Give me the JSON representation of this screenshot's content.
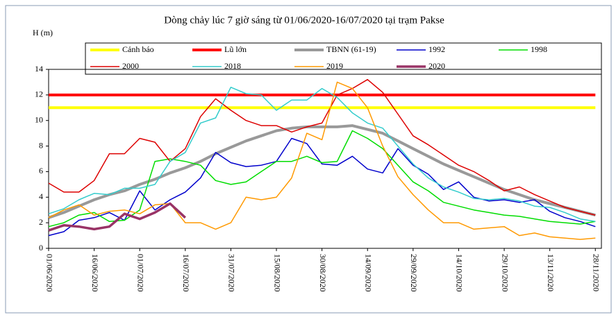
{
  "chart_data": {
    "type": "line",
    "title": "Dòng chảy lúc 7 giờ sáng từ 01/06/2020-16/07/2020 tại trạm Pakse",
    "y_label": "H (m)",
    "x": [
      "01/06/2020",
      "06/06/2020",
      "11/06/2020",
      "16/06/2020",
      "21/06/2020",
      "26/06/2020",
      "01/07/2020",
      "06/07/2020",
      "11/07/2020",
      "16/07/2020",
      "21/07/2020",
      "26/07/2020",
      "31/07/2020",
      "05/08/2020",
      "10/08/2020",
      "15/08/2020",
      "20/08/2020",
      "25/08/2020",
      "30/08/2020",
      "04/09/2020",
      "09/09/2020",
      "14/09/2020",
      "19/09/2020",
      "24/09/2020",
      "29/09/2020",
      "04/10/2020",
      "09/10/2020",
      "14/10/2020",
      "19/10/2020",
      "24/10/2020",
      "29/10/2020",
      "03/11/2020",
      "08/11/2020",
      "13/11/2020",
      "18/11/2020",
      "23/11/2020",
      "28/11/2020"
    ],
    "xlim": [
      "01/06/2020",
      "30/11/2020"
    ],
    "xticks": [
      "01/06/2020",
      "16/06/2020",
      "01/07/2020",
      "16/07/2020",
      "31/07/2020",
      "15/08/2020",
      "30/08/2020",
      "14/09/2020",
      "29/09/2020",
      "14/10/2020",
      "29/10/2020",
      "13/11/2020",
      "28/11/2020"
    ],
    "ylim": [
      0,
      14
    ],
    "yticks": [
      0,
      2,
      4,
      6,
      8,
      10,
      12,
      14
    ],
    "series": [
      {
        "name": "Cảnh báo",
        "color": "#ffff00",
        "line_width": 4,
        "values": [
          11,
          11,
          11,
          11,
          11,
          11,
          11,
          11,
          11,
          11,
          11,
          11,
          11,
          11,
          11,
          11,
          11,
          11,
          11,
          11,
          11,
          11,
          11,
          11,
          11,
          11,
          11,
          11,
          11,
          11,
          11,
          11,
          11,
          11,
          11,
          11,
          11
        ]
      },
      {
        "name": "Lũ lớn",
        "color": "#ff0000",
        "line_width": 4,
        "values": [
          12,
          12,
          12,
          12,
          12,
          12,
          12,
          12,
          12,
          12,
          12,
          12,
          12,
          12,
          12,
          12,
          12,
          12,
          12,
          12,
          12,
          12,
          12,
          12,
          12,
          12,
          12,
          12,
          12,
          12,
          12,
          12,
          12,
          12,
          12,
          12,
          12
        ]
      },
      {
        "name": "TBNN (61-19)",
        "color": "#999999",
        "line_width": 4,
        "values": [
          2.4,
          2.8,
          3.3,
          3.8,
          4.2,
          4.5,
          5.0,
          5.4,
          5.9,
          6.3,
          6.8,
          7.4,
          7.9,
          8.4,
          8.8,
          9.2,
          9.4,
          9.5,
          9.5,
          9.5,
          9.6,
          9.3,
          9.0,
          8.4,
          7.8,
          7.2,
          6.6,
          6.1,
          5.6,
          5.1,
          4.6,
          4.2,
          3.8,
          3.5,
          3.2,
          2.9,
          2.6
        ]
      },
      {
        "name": "1992",
        "color": "#0000cc",
        "line_width": 1.5,
        "values": [
          1.0,
          1.3,
          2.2,
          2.4,
          2.8,
          2.2,
          4.5,
          3.0,
          3.8,
          4.4,
          5.5,
          7.5,
          6.7,
          6.4,
          6.5,
          6.8,
          8.6,
          8.2,
          6.6,
          6.5,
          7.2,
          6.2,
          5.9,
          7.8,
          6.5,
          5.8,
          4.6,
          5.2,
          4.0,
          3.7,
          3.8,
          3.6,
          3.8,
          2.9,
          2.4,
          2.1,
          1.7
        ]
      },
      {
        "name": "1998",
        "color": "#00dd00",
        "line_width": 1.5,
        "values": [
          1.7,
          2.0,
          2.6,
          2.8,
          2.1,
          2.2,
          3.0,
          6.8,
          7.0,
          6.8,
          6.5,
          5.3,
          5.0,
          5.2,
          6.0,
          6.8,
          6.8,
          7.2,
          6.7,
          6.8,
          9.2,
          8.6,
          7.8,
          6.5,
          5.2,
          4.5,
          3.6,
          3.3,
          3.0,
          2.8,
          2.6,
          2.5,
          2.3,
          2.1,
          2.0,
          1.9,
          2.1
        ]
      },
      {
        "name": "2000",
        "color": "#dd0000",
        "line_width": 1.5,
        "values": [
          5.1,
          4.4,
          4.4,
          5.3,
          7.4,
          7.4,
          8.6,
          8.3,
          6.8,
          7.8,
          10.3,
          11.7,
          10.8,
          10.0,
          9.6,
          9.6,
          9.1,
          9.5,
          9.8,
          12.0,
          12.5,
          13.2,
          12.2,
          10.5,
          8.8,
          8.1,
          7.3,
          6.5,
          6.0,
          5.3,
          4.5,
          4.8,
          4.2,
          3.7,
          3.2,
          2.9,
          2.6
        ]
      },
      {
        "name": "2018",
        "color": "#33cccc",
        "line_width": 1.5,
        "values": [
          2.7,
          3.1,
          3.8,
          4.3,
          4.2,
          4.7,
          4.7,
          5.0,
          6.8,
          7.5,
          9.8,
          10.2,
          12.6,
          12.1,
          12.0,
          10.8,
          11.6,
          11.6,
          12.5,
          11.8,
          10.6,
          9.8,
          9.4,
          8.0,
          6.6,
          5.5,
          4.8,
          4.4,
          3.9,
          3.8,
          3.9,
          3.7,
          3.3,
          3.2,
          2.8,
          2.3,
          2.1
        ]
      },
      {
        "name": "2019",
        "color": "#ff9900",
        "line_width": 1.5,
        "values": [
          2.4,
          3.0,
          3.4,
          2.6,
          2.9,
          3.0,
          2.7,
          3.4,
          3.5,
          2.0,
          2.0,
          1.5,
          2.0,
          4.0,
          3.8,
          4.0,
          5.5,
          9.0,
          8.5,
          13.0,
          12.5,
          11.0,
          8.0,
          5.6,
          4.2,
          3.0,
          2.0,
          2.0,
          1.5,
          1.6,
          1.7,
          1.0,
          1.2,
          0.9,
          0.8,
          0.7,
          0.8
        ]
      },
      {
        "name": "2020",
        "color": "#993366",
        "line_width": 3.5,
        "values": [
          1.4,
          1.8,
          1.7,
          1.5,
          1.7,
          2.7,
          2.3,
          2.8,
          3.5,
          2.4,
          null,
          null,
          null,
          null,
          null,
          null,
          null,
          null,
          null,
          null,
          null,
          null,
          null,
          null,
          null,
          null,
          null,
          null,
          null,
          null,
          null,
          null,
          null,
          null,
          null,
          null,
          null
        ]
      }
    ]
  }
}
